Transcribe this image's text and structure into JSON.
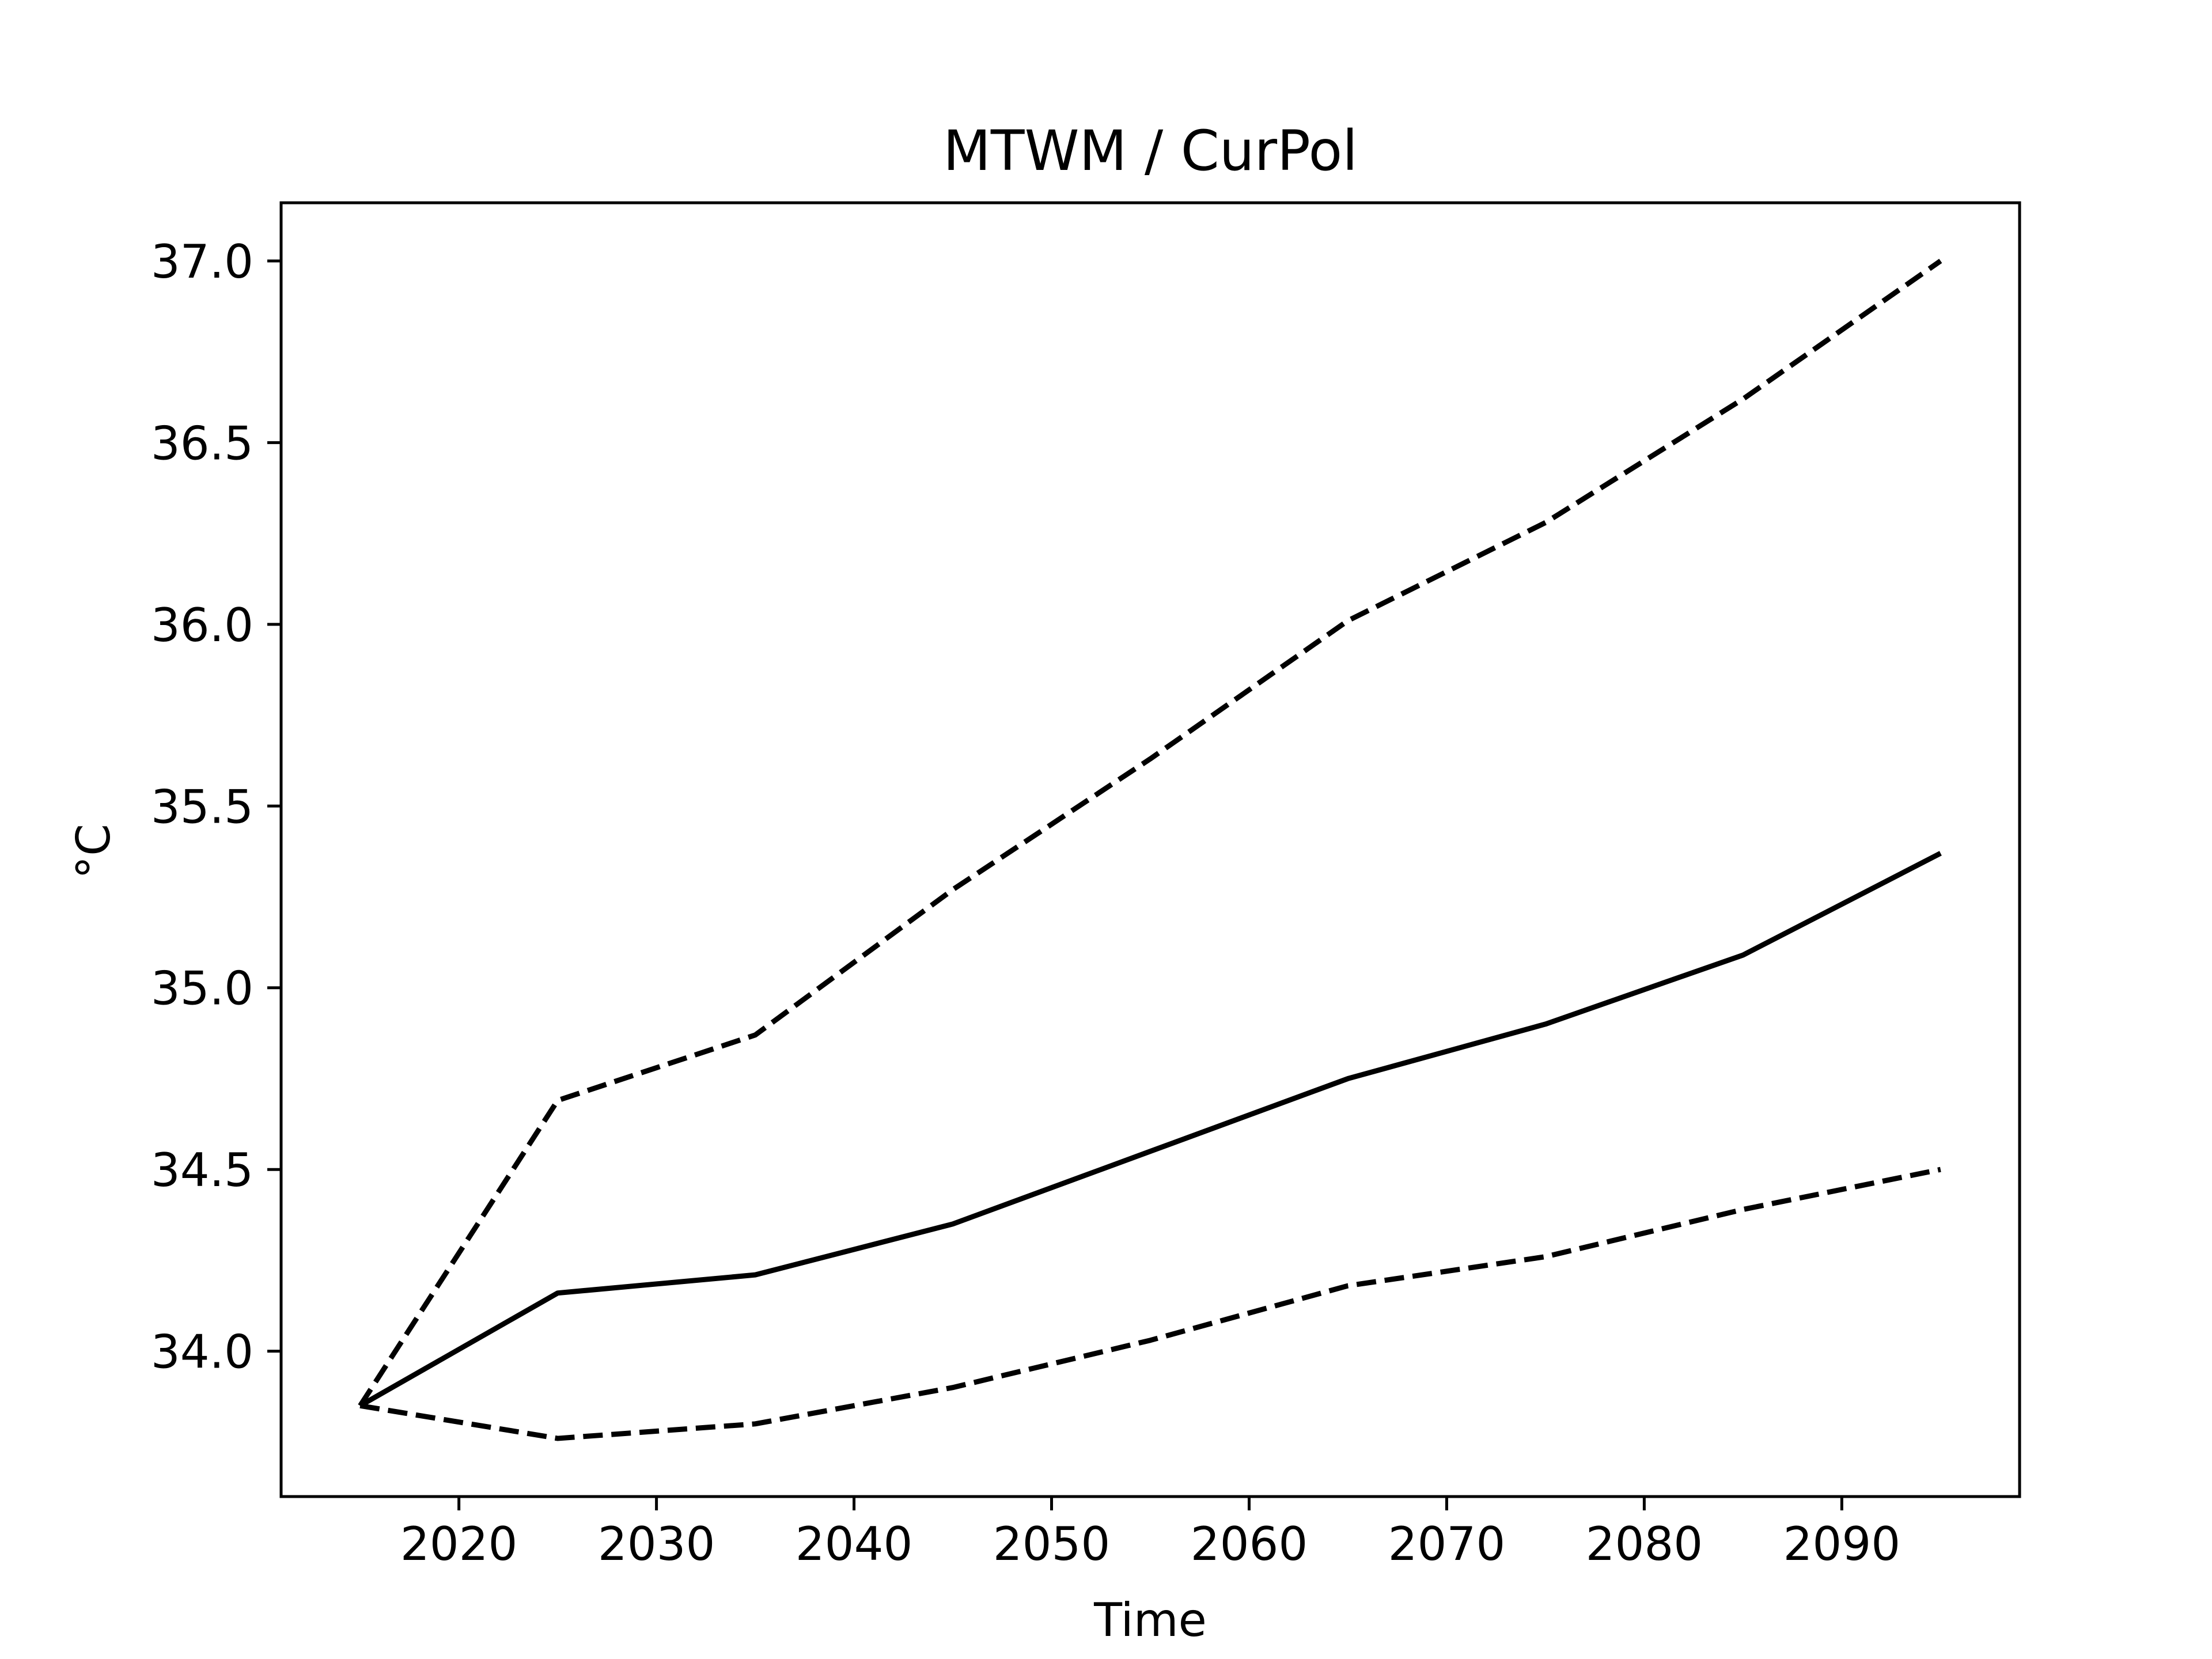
{
  "chart_data": {
    "type": "line",
    "title": "MTWM / CurPol",
    "xlabel": "Time",
    "ylabel": "°C",
    "xlim": [
      2011,
      2099
    ],
    "ylim": [
      33.6,
      37.16
    ],
    "x_ticks": [
      2020,
      2030,
      2040,
      2050,
      2060,
      2070,
      2080,
      2090
    ],
    "x_tick_labels": [
      "2020",
      "2030",
      "2040",
      "2050",
      "2060",
      "2070",
      "2080",
      "2090"
    ],
    "y_ticks": [
      34.0,
      34.5,
      35.0,
      35.5,
      36.0,
      36.5,
      37.0
    ],
    "y_tick_labels": [
      "34.0",
      "34.5",
      "35.0",
      "35.5",
      "36.0",
      "36.5",
      "37.0"
    ],
    "grid": false,
    "legend": "none",
    "x": [
      2015,
      2025,
      2035,
      2045,
      2055,
      2065,
      2075,
      2085,
      2095
    ],
    "series": [
      {
        "style": "solid",
        "color": "#000000",
        "values": [
          33.85,
          34.16,
          34.21,
          34.35,
          34.55,
          34.75,
          34.9,
          35.09,
          35.37
        ]
      },
      {
        "style": "dashed",
        "color": "#000000",
        "values": [
          33.85,
          34.69,
          34.87,
          35.27,
          35.63,
          36.01,
          36.28,
          36.62,
          37.0
        ]
      },
      {
        "style": "dashed",
        "color": "#000000",
        "values": [
          33.85,
          33.76,
          33.8,
          33.9,
          34.03,
          34.18,
          34.26,
          34.39,
          34.5
        ]
      }
    ]
  }
}
